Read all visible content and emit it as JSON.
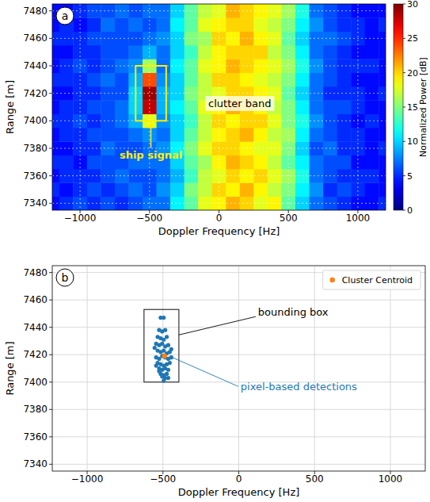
{
  "chart_data": [
    {
      "type": "heatmap",
      "panel": "a",
      "x_label": "Doppler Frequency [Hz]",
      "y_label": "Range [m]",
      "xlim": [
        -1200,
        1200
      ],
      "ylim": [
        7335,
        7485
      ],
      "xticks": [
        {
          "value": -1000,
          "label": "−1000"
        },
        {
          "value": -500,
          "label": "−500"
        },
        0,
        500,
        1000
      ],
      "yticks": [
        7340,
        7360,
        7380,
        7400,
        7420,
        7440,
        7460,
        7480
      ],
      "grid": true,
      "x": [
        -1200,
        -1100,
        -1000,
        -900,
        -800,
        -700,
        -600,
        -500,
        -400,
        -300,
        -200,
        -100,
        0,
        100,
        200,
        300,
        400,
        500,
        600,
        700,
        800,
        900,
        1000,
        1100,
        1200
      ],
      "y": [
        7340,
        7350,
        7360,
        7370,
        7380,
        7390,
        7400,
        7410,
        7420,
        7430,
        7440,
        7450,
        7460,
        7470,
        7480
      ],
      "cells": [
        [
          4,
          5,
          6,
          5,
          6,
          5,
          6,
          7,
          7,
          11,
          14,
          18,
          19,
          21,
          20,
          18,
          19,
          14,
          10,
          7,
          6,
          5,
          4,
          4,
          5
        ],
        [
          5,
          4,
          5,
          6,
          5,
          6,
          7,
          6,
          8,
          10,
          15,
          17,
          20,
          19,
          21,
          19,
          17,
          15,
          11,
          8,
          5,
          6,
          5,
          4,
          4
        ],
        [
          4,
          5,
          5,
          5,
          6,
          7,
          6,
          6,
          7,
          9,
          13,
          17,
          18,
          20,
          19,
          20,
          18,
          16,
          12,
          7,
          6,
          5,
          5,
          5,
          4
        ],
        [
          5,
          5,
          4,
          6,
          6,
          6,
          7,
          7,
          7,
          10,
          14,
          16,
          19,
          21,
          20,
          19,
          17,
          14,
          11,
          7,
          6,
          6,
          4,
          4,
          4
        ],
        [
          4,
          4,
          5,
          5,
          7,
          6,
          6,
          7,
          8,
          11,
          15,
          18,
          20,
          20,
          19,
          18,
          18,
          15,
          10,
          6,
          7,
          5,
          5,
          4,
          5
        ],
        [
          4,
          5,
          5,
          6,
          6,
          6,
          7,
          8,
          7,
          10,
          14,
          17,
          19,
          20,
          21,
          19,
          17,
          16,
          11,
          7,
          6,
          5,
          5,
          4,
          4
        ],
        [
          5,
          5,
          6,
          5,
          6,
          7,
          9,
          18,
          8,
          10,
          13,
          17,
          20,
          19,
          20,
          20,
          18,
          15,
          12,
          8,
          6,
          5,
          4,
          5,
          4
        ],
        [
          4,
          5,
          5,
          6,
          6,
          7,
          10,
          28,
          9,
          11,
          14,
          18,
          19,
          21,
          20,
          19,
          17,
          15,
          11,
          7,
          6,
          6,
          5,
          4,
          4
        ],
        [
          4,
          4,
          5,
          5,
          6,
          6,
          10,
          29,
          9,
          10,
          15,
          17,
          18,
          20,
          20,
          19,
          18,
          14,
          10,
          7,
          5,
          5,
          5,
          4,
          5
        ],
        [
          5,
          5,
          5,
          6,
          7,
          6,
          9,
          24,
          8,
          10,
          14,
          17,
          20,
          20,
          19,
          18,
          17,
          15,
          11,
          7,
          6,
          5,
          4,
          4,
          4
        ],
        [
          4,
          5,
          6,
          5,
          6,
          7,
          8,
          16,
          7,
          11,
          14,
          18,
          19,
          21,
          20,
          19,
          18,
          16,
          12,
          8,
          6,
          5,
          5,
          5,
          4
        ],
        [
          4,
          4,
          5,
          5,
          6,
          6,
          7,
          9,
          7,
          10,
          13,
          17,
          19,
          20,
          20,
          20,
          17,
          15,
          11,
          7,
          6,
          5,
          4,
          4,
          4
        ],
        [
          5,
          5,
          5,
          6,
          6,
          6,
          6,
          7,
          8,
          10,
          15,
          16,
          20,
          19,
          21,
          19,
          18,
          14,
          10,
          7,
          7,
          6,
          5,
          4,
          4
        ],
        [
          4,
          5,
          4,
          5,
          7,
          6,
          7,
          6,
          7,
          11,
          14,
          18,
          19,
          20,
          20,
          18,
          17,
          15,
          11,
          8,
          6,
          5,
          5,
          4,
          5
        ],
        [
          4,
          4,
          5,
          6,
          6,
          7,
          6,
          7,
          7,
          10,
          14,
          17,
          18,
          21,
          20,
          19,
          18,
          16,
          12,
          7,
          6,
          5,
          4,
          4,
          4
        ]
      ],
      "colorbar": {
        "label": "Normalized Power [dB]",
        "range": [
          0,
          30
        ],
        "ticks": [
          0,
          5,
          10,
          15,
          20,
          25,
          30
        ]
      },
      "annotations": [
        {
          "text": "ship signal",
          "x": [
            -600,
            -380
          ],
          "y": [
            7400,
            7440
          ]
        },
        {
          "text": "clutter band",
          "x": 150,
          "y": 7410
        }
      ]
    },
    {
      "type": "scatter",
      "panel": "b",
      "x_label": "Doppler Frequency [Hz]",
      "y_label": "Range [m]",
      "xlim": [
        -1230,
        1230
      ],
      "ylim": [
        7335,
        7485
      ],
      "xticks": [
        {
          "value": -1000,
          "label": "−1000"
        },
        {
          "value": -500,
          "label": "−500"
        },
        0,
        500,
        1000
      ],
      "yticks": [
        7340,
        7360,
        7380,
        7400,
        7420,
        7440,
        7460,
        7480
      ],
      "grid": true,
      "legend": "upper right",
      "series": [
        {
          "name": "Cluster Centroid",
          "color": "#ff7f0e",
          "marker": "circle",
          "x": [
            -490
          ],
          "values": [
            7419
          ]
        }
      ],
      "detections": {
        "label": "pixel-based detections",
        "color": "#1f77b4",
        "x": [
          -515,
          -495,
          -525,
          -505,
          -485,
          -535,
          -515,
          -495,
          -475,
          -545,
          -525,
          -505,
          -485,
          -465,
          -535,
          -515,
          -495,
          -475,
          -455,
          -545,
          -525,
          -505,
          -485,
          -465,
          -445,
          -535,
          -515,
          -495,
          -475,
          -455,
          -525,
          -505,
          -485,
          -465,
          -545,
          -515,
          -495,
          -475,
          -505,
          -485,
          -525,
          -495,
          -465,
          -555,
          -445
        ],
        "values": [
          7447,
          7447,
          7438,
          7437,
          7438,
          7433,
          7432,
          7431,
          7433,
          7428,
          7427,
          7428,
          7426,
          7427,
          7423,
          7422,
          7423,
          7421,
          7422,
          7418,
          7417,
          7419,
          7418,
          7417,
          7418,
          7414,
          7413,
          7412,
          7413,
          7414,
          7410,
          7409,
          7410,
          7409,
          7412,
          7406,
          7405,
          7406,
          7404,
          7403,
          7408,
          7401,
          7403,
          7425,
          7424
        ]
      },
      "bounding_box": {
        "label": "bounding box",
        "x": [
          -625,
          -395
        ],
        "y": [
          7400,
          7453
        ]
      }
    }
  ]
}
